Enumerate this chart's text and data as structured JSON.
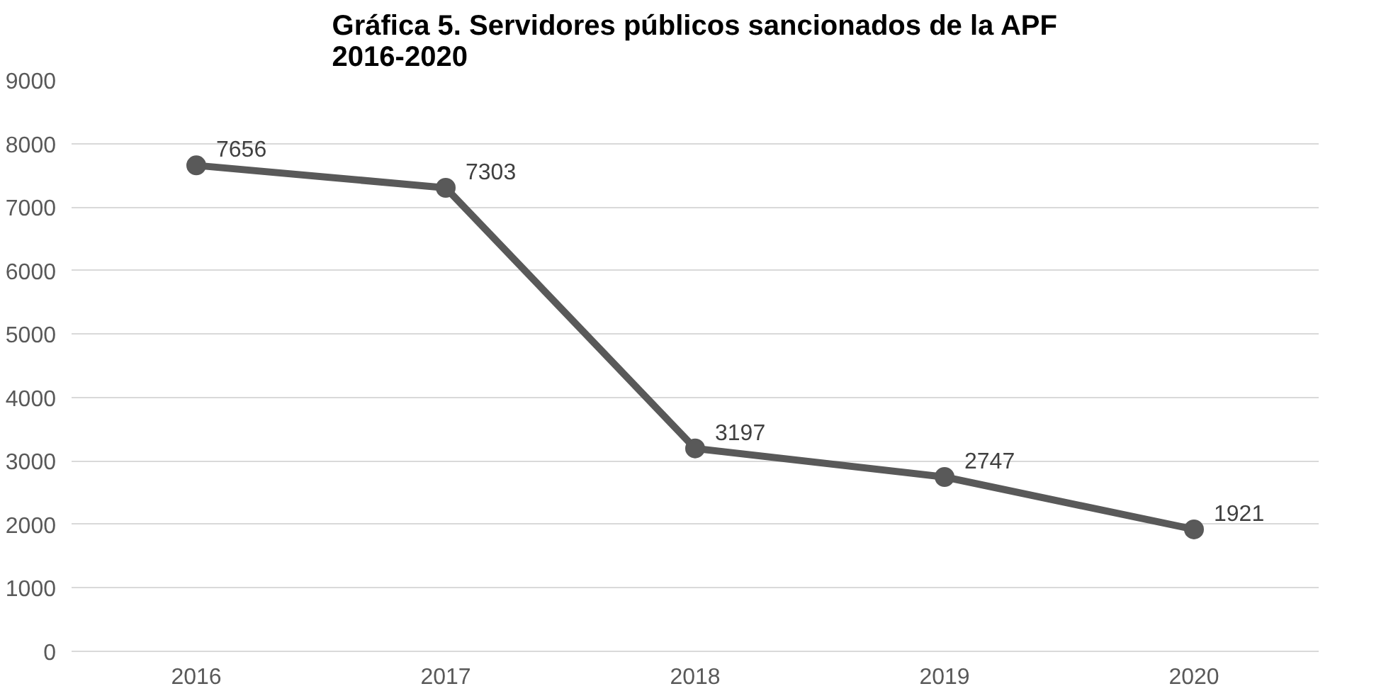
{
  "chart_data": {
    "type": "line",
    "title": "Gráfica 5. Servidores públicos sancionados de la APF\n2016-2020",
    "categories": [
      "2016",
      "2017",
      "2018",
      "2019",
      "2020"
    ],
    "series": [
      {
        "color": "#595959",
        "values": [
          7656,
          7303,
          3197,
          2747,
          1921
        ]
      }
    ],
    "ylim": [
      0,
      9000
    ],
    "yticks": [
      0,
      1000,
      2000,
      3000,
      4000,
      5000,
      6000,
      7000,
      8000,
      9000
    ],
    "grid": "y",
    "marker": "circle",
    "line_style": "solid",
    "data_labels": true
  }
}
